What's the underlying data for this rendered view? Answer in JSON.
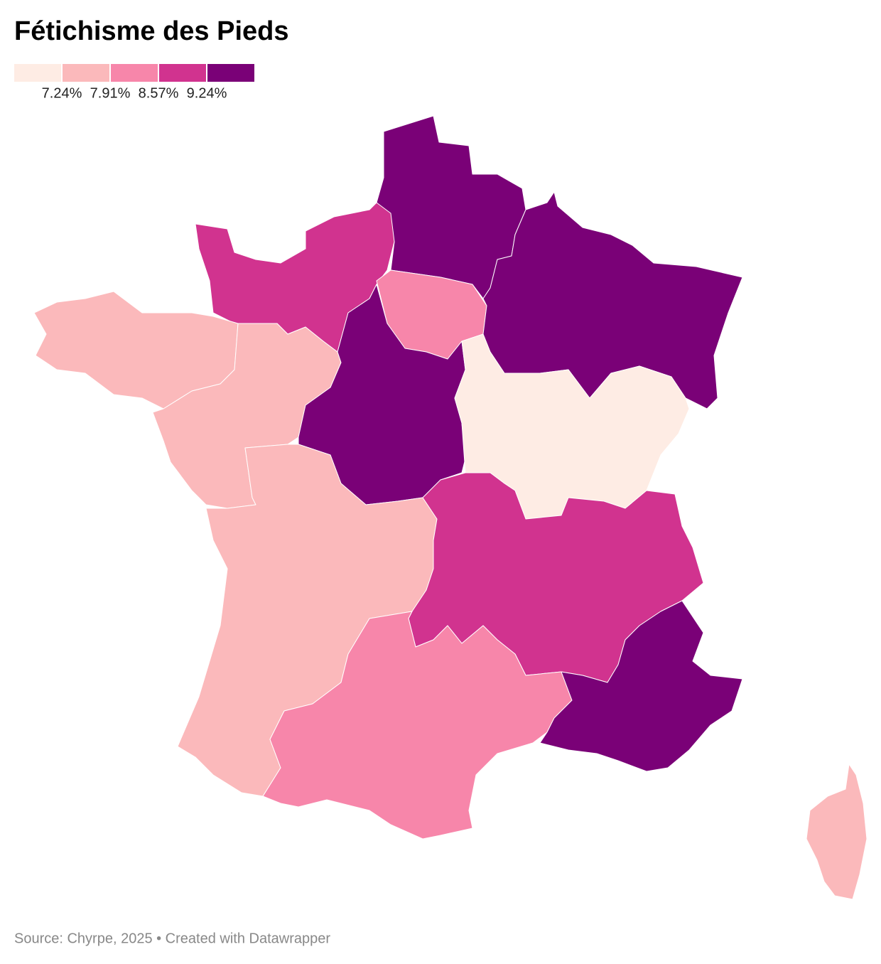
{
  "title": "Fétichisme des Pieds",
  "legend": {
    "colors": [
      "#feece4",
      "#fbb9bb",
      "#f786aa",
      "#d1338f",
      "#7a0177"
    ],
    "thresholds": [
      {
        "value": 7.24,
        "label": "7.24%"
      },
      {
        "value": 7.91,
        "label": "7.91%"
      },
      {
        "value": 8.57,
        "label": "8.57%"
      },
      {
        "value": 9.24,
        "label": "9.24%"
      }
    ]
  },
  "regions": [
    {
      "color": "#7a0177"
    },
    {
      "color": "#d1338f"
    },
    {
      "color": "#f786aa"
    },
    {
      "color": "#7a0177"
    },
    {
      "color": "#fbb9bb"
    },
    {
      "color": "#fbb9bb"
    },
    {
      "color": "#7a0177"
    },
    {
      "color": "#feece4"
    },
    {
      "color": "#fbb9bb"
    },
    {
      "color": "#d1338f"
    },
    {
      "color": "#f786aa"
    },
    {
      "color": "#7a0177"
    },
    {
      "color": "#fbb9bb"
    }
  ],
  "footer": "Source: Chyrpe, 2025 • Created with Datawrapper"
}
